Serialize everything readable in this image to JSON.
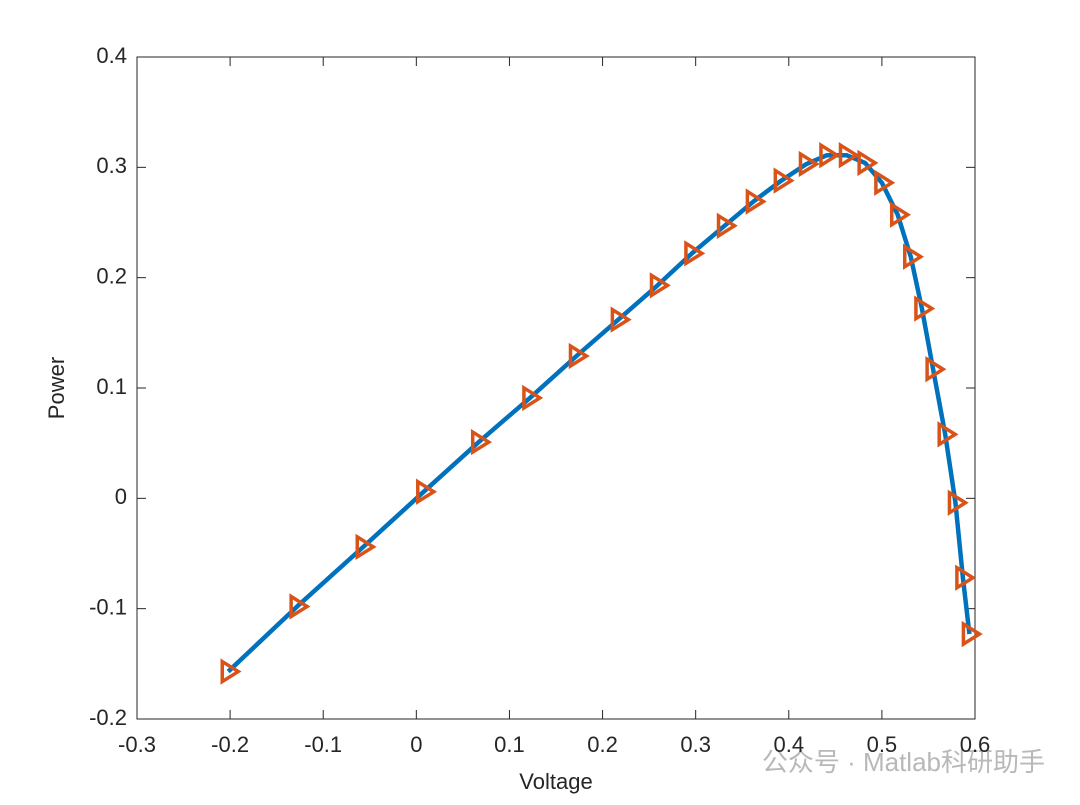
{
  "chart_data": {
    "type": "line",
    "xlabel": "Voltage",
    "ylabel": "Power",
    "x": [
      -0.202,
      -0.128,
      -0.057,
      0.008,
      0.067,
      0.122,
      0.172,
      0.217,
      0.259,
      0.296,
      0.331,
      0.362,
      0.392,
      0.419,
      0.441,
      0.462,
      0.482,
      0.5,
      0.517,
      0.531,
      0.543,
      0.555,
      0.568,
      0.579,
      0.587,
      0.594
    ],
    "series": [
      {
        "color": "#0072bd",
        "marker_color": "#d95319",
        "marker": "triangle-right",
        "values": [
          -0.157,
          -0.098,
          -0.044,
          0.006,
          0.051,
          0.091,
          0.129,
          0.162,
          0.193,
          0.222,
          0.247,
          0.269,
          0.288,
          0.303,
          0.311,
          0.311,
          0.304,
          0.286,
          0.257,
          0.219,
          0.172,
          0.117,
          0.058,
          -0.004,
          -0.072,
          -0.123
        ]
      }
    ],
    "xlim": [
      -0.3,
      0.6
    ],
    "xticks": [
      -0.3,
      -0.2,
      -0.1,
      0,
      0.1,
      0.2,
      0.3,
      0.4,
      0.5,
      0.6
    ],
    "ylim": [
      -0.2,
      0.4
    ],
    "yticks": [
      -0.2,
      -0.1,
      0,
      0.1,
      0.2,
      0.3,
      0.4
    ],
    "grid": false
  },
  "watermark": "公众号 · Matlab科研助手"
}
